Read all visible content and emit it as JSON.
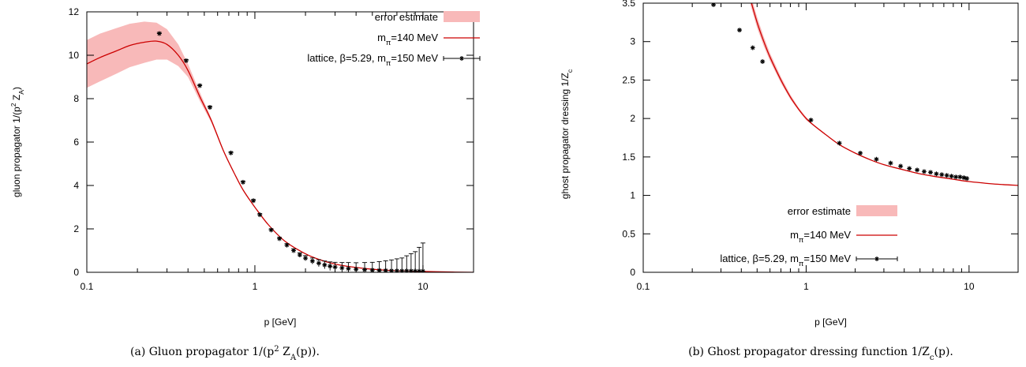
{
  "chart_data": [
    {
      "type": "line",
      "caption": "(a) Gluon propagator 1/(p² Z_A(p)).",
      "xlabel": "p [GeV]",
      "ylabel": "gluon propagator  1/(p² Z_A)",
      "xscale": "log",
      "xlim": [
        0.1,
        20
      ],
      "ylim": [
        0,
        12
      ],
      "xticks": [
        0.1,
        1,
        10
      ],
      "xtick_labels": [
        "0.1",
        "1",
        "10"
      ],
      "yticks": [
        0,
        2,
        4,
        6,
        8,
        10,
        12
      ],
      "ytick_labels": [
        "0",
        "2",
        "4",
        "6",
        "8",
        "10",
        "12"
      ],
      "grid": false,
      "legend_position": "top-right",
      "legend": [
        "error estimate",
        "m_π=140 MeV",
        "lattice, β=5.29, m_π=150 MeV"
      ],
      "series": [
        {
          "name": "m_π=140 MeV",
          "kind": "curve",
          "color": "#cc0000",
          "x": [
            0.1,
            0.12,
            0.15,
            0.18,
            0.22,
            0.26,
            0.3,
            0.35,
            0.4,
            0.47,
            0.55,
            0.65,
            0.75,
            0.85,
            1.0,
            1.2,
            1.5,
            2.0,
            2.5,
            3.0,
            4.0,
            5.0,
            7.0,
            10.0,
            15.0,
            20.0
          ],
          "y": [
            9.6,
            9.9,
            10.2,
            10.45,
            10.6,
            10.65,
            10.5,
            10.0,
            9.3,
            8.1,
            7.0,
            5.6,
            4.6,
            3.8,
            3.0,
            2.2,
            1.45,
            0.85,
            0.55,
            0.38,
            0.22,
            0.14,
            0.07,
            0.04,
            0.01,
            0.0
          ]
        },
        {
          "name": "error estimate",
          "kind": "band",
          "color": "#f8b9b9",
          "x": [
            0.1,
            0.12,
            0.15,
            0.18,
            0.22,
            0.26,
            0.3,
            0.35,
            0.4,
            0.47,
            0.55,
            0.65,
            0.75,
            0.85,
            1.0
          ],
          "upper": [
            10.7,
            11.0,
            11.25,
            11.45,
            11.55,
            11.5,
            11.2,
            10.5,
            9.6,
            8.3,
            7.1,
            5.65,
            4.62,
            3.81,
            3.0
          ],
          "lower": [
            8.5,
            8.8,
            9.15,
            9.45,
            9.65,
            9.8,
            9.8,
            9.5,
            9.0,
            7.9,
            6.9,
            5.55,
            4.58,
            3.79,
            3.0
          ]
        },
        {
          "name": "lattice, β=5.29, m_π=150 MeV",
          "kind": "points",
          "color": "#000000",
          "x": [
            0.27,
            0.39,
            0.47,
            0.54,
            0.72,
            0.85,
            0.98,
            1.07,
            1.25,
            1.4,
            1.55,
            1.7,
            1.85,
            2.0,
            2.2,
            2.4,
            2.6,
            2.8,
            3.0,
            3.3,
            3.6,
            4.0,
            4.5,
            5.0,
            5.5,
            6.0,
            6.5,
            7.0,
            7.5,
            8.0,
            8.5,
            9.0,
            9.5,
            10.0
          ],
          "y": [
            11.0,
            9.75,
            8.6,
            7.6,
            5.5,
            4.15,
            3.3,
            2.65,
            1.95,
            1.55,
            1.25,
            1.0,
            0.8,
            0.65,
            0.52,
            0.42,
            0.34,
            0.28,
            0.24,
            0.2,
            0.17,
            0.14,
            0.12,
            0.1,
            0.09,
            0.08,
            0.07,
            0.07,
            0.06,
            0.06,
            0.06,
            0.05,
            0.05,
            0.05
          ],
          "yerr": [
            0.05,
            0.05,
            0.05,
            0.05,
            0.05,
            0.05,
            0.05,
            0.05,
            0.05,
            0.06,
            0.07,
            0.08,
            0.1,
            0.12,
            0.14,
            0.16,
            0.18,
            0.2,
            0.22,
            0.25,
            0.28,
            0.3,
            0.33,
            0.36,
            0.4,
            0.45,
            0.5,
            0.55,
            0.6,
            0.7,
            0.8,
            0.9,
            1.1,
            1.3
          ]
        }
      ]
    },
    {
      "type": "line",
      "caption": "(b) Ghost propagator dressing function 1/Z_c(p).",
      "xlabel": "p [GeV]",
      "ylabel": "ghost propagator dressing 1/Z_c",
      "xscale": "log",
      "xlim": [
        0.1,
        20
      ],
      "ylim": [
        0,
        3.5
      ],
      "xticks": [
        0.1,
        1,
        10
      ],
      "xtick_labels": [
        "0.1",
        "1",
        "10"
      ],
      "yticks": [
        0,
        0.5,
        1,
        1.5,
        2,
        2.5,
        3,
        3.5
      ],
      "ytick_labels": [
        "0",
        "0.5",
        "1",
        "1.5",
        "2",
        "2.5",
        "3",
        "3.5"
      ],
      "grid": false,
      "legend_position": "bottom-right",
      "legend": [
        "error estimate",
        "m_π=140 MeV",
        "lattice, β=5.29, m_π=150 MeV"
      ],
      "series": [
        {
          "name": "m_π=140 MeV",
          "kind": "curve",
          "color": "#cc0000",
          "x": [
            0.455,
            0.5,
            0.55,
            0.6,
            0.7,
            0.8,
            0.9,
            1.0,
            1.1,
            1.3,
            1.6,
            2.0,
            2.5,
            3.0,
            4.0,
            5.0,
            6.0,
            8.0,
            10.0,
            14.0,
            20.0
          ],
          "y": [
            3.55,
            3.25,
            3.0,
            2.8,
            2.5,
            2.28,
            2.12,
            2.0,
            1.92,
            1.8,
            1.66,
            1.55,
            1.46,
            1.4,
            1.33,
            1.28,
            1.25,
            1.21,
            1.18,
            1.15,
            1.13
          ]
        },
        {
          "name": "error estimate",
          "kind": "band",
          "color": "#f8b9b9",
          "x": [
            0.455,
            0.5,
            0.55,
            0.6,
            0.7,
            0.8,
            0.9,
            1.0,
            1.1,
            1.3
          ],
          "upper": [
            3.62,
            3.32,
            3.06,
            2.85,
            2.54,
            2.31,
            2.14,
            2.02,
            1.93,
            1.81
          ],
          "lower": [
            3.48,
            3.18,
            2.94,
            2.75,
            2.46,
            2.25,
            2.1,
            1.98,
            1.91,
            1.79
          ]
        },
        {
          "name": "lattice, β=5.29, m_π=150 MeV",
          "kind": "points",
          "color": "#000000",
          "x": [
            0.27,
            0.39,
            0.47,
            0.54,
            1.07,
            1.6,
            2.15,
            2.7,
            3.3,
            3.8,
            4.3,
            4.8,
            5.3,
            5.8,
            6.3,
            6.8,
            7.3,
            7.8,
            8.3,
            8.8,
            9.3,
            9.7
          ],
          "y": [
            3.48,
            3.15,
            2.92,
            2.74,
            1.98,
            1.68,
            1.55,
            1.47,
            1.42,
            1.38,
            1.35,
            1.33,
            1.31,
            1.3,
            1.28,
            1.27,
            1.26,
            1.25,
            1.24,
            1.24,
            1.23,
            1.22
          ],
          "yerr": [
            0.01,
            0.01,
            0.01,
            0.01,
            0.01,
            0.01,
            0.01,
            0.01,
            0.01,
            0.01,
            0.01,
            0.01,
            0.01,
            0.01,
            0.01,
            0.01,
            0.01,
            0.01,
            0.01,
            0.01,
            0.01,
            0.01
          ]
        }
      ]
    }
  ]
}
